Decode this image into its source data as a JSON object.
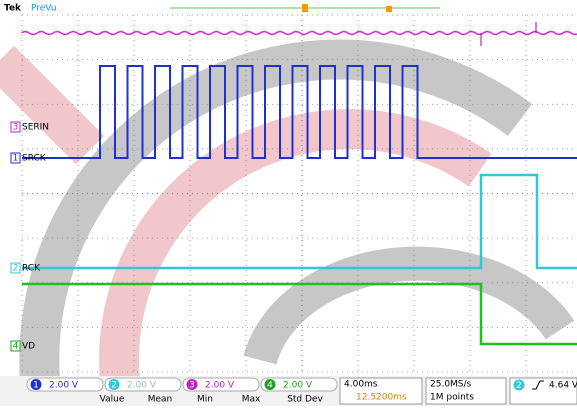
{
  "header": {
    "brand": "Tek",
    "mode": "PreVu"
  },
  "traces": [
    {
      "id": "3",
      "name": "SERIN"
    },
    {
      "id": "1",
      "name": "SRCK"
    },
    {
      "id": "2",
      "name": "RCK"
    },
    {
      "id": "4",
      "name": "VD"
    }
  ],
  "channels": [
    {
      "id": "1",
      "scale": "2.00 V"
    },
    {
      "id": "2",
      "scale": "2.00 V"
    },
    {
      "id": "3",
      "scale": "2.00 V"
    },
    {
      "id": "4",
      "scale": "2.00 V"
    }
  ],
  "timebase": {
    "scale": "4.00ms",
    "position": "12.5200ms"
  },
  "acquisition": {
    "rate": "25.0MS/s",
    "length": "1M points"
  },
  "trigger": {
    "source": "2",
    "level": "4.64 V"
  },
  "measurements": {
    "headers": [
      "Value",
      "Mean",
      "Min",
      "Max",
      "Std Dev"
    ]
  }
}
